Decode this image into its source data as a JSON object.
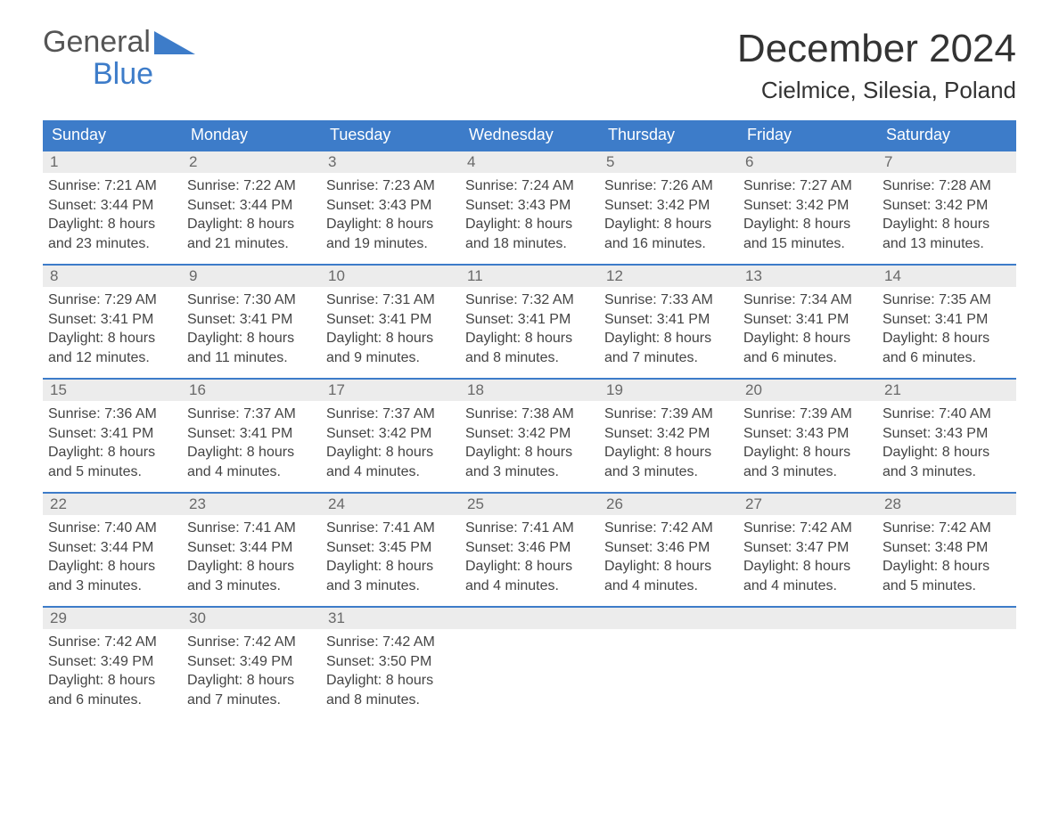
{
  "logo": {
    "word1": "General",
    "word2": "Blue",
    "accent_color": "#3d7cc9"
  },
  "title": "December 2024",
  "location": "Cielmice, Silesia, Poland",
  "colors": {
    "header_bg": "#3d7cc9",
    "header_text": "#ffffff",
    "daynum_bg": "#ececec",
    "daynum_text": "#696969",
    "body_text": "#444444",
    "border_top": "#3d7cc9",
    "page_bg": "#ffffff"
  },
  "weekdays": [
    "Sunday",
    "Monday",
    "Tuesday",
    "Wednesday",
    "Thursday",
    "Friday",
    "Saturday"
  ],
  "days": [
    {
      "n": "1",
      "sunrise": "7:21 AM",
      "sunset": "3:44 PM",
      "daylight": "8 hours and 23 minutes."
    },
    {
      "n": "2",
      "sunrise": "7:22 AM",
      "sunset": "3:44 PM",
      "daylight": "8 hours and 21 minutes."
    },
    {
      "n": "3",
      "sunrise": "7:23 AM",
      "sunset": "3:43 PM",
      "daylight": "8 hours and 19 minutes."
    },
    {
      "n": "4",
      "sunrise": "7:24 AM",
      "sunset": "3:43 PM",
      "daylight": "8 hours and 18 minutes."
    },
    {
      "n": "5",
      "sunrise": "7:26 AM",
      "sunset": "3:42 PM",
      "daylight": "8 hours and 16 minutes."
    },
    {
      "n": "6",
      "sunrise": "7:27 AM",
      "sunset": "3:42 PM",
      "daylight": "8 hours and 15 minutes."
    },
    {
      "n": "7",
      "sunrise": "7:28 AM",
      "sunset": "3:42 PM",
      "daylight": "8 hours and 13 minutes."
    },
    {
      "n": "8",
      "sunrise": "7:29 AM",
      "sunset": "3:41 PM",
      "daylight": "8 hours and 12 minutes."
    },
    {
      "n": "9",
      "sunrise": "7:30 AM",
      "sunset": "3:41 PM",
      "daylight": "8 hours and 11 minutes."
    },
    {
      "n": "10",
      "sunrise": "7:31 AM",
      "sunset": "3:41 PM",
      "daylight": "8 hours and 9 minutes."
    },
    {
      "n": "11",
      "sunrise": "7:32 AM",
      "sunset": "3:41 PM",
      "daylight": "8 hours and 8 minutes."
    },
    {
      "n": "12",
      "sunrise": "7:33 AM",
      "sunset": "3:41 PM",
      "daylight": "8 hours and 7 minutes."
    },
    {
      "n": "13",
      "sunrise": "7:34 AM",
      "sunset": "3:41 PM",
      "daylight": "8 hours and 6 minutes."
    },
    {
      "n": "14",
      "sunrise": "7:35 AM",
      "sunset": "3:41 PM",
      "daylight": "8 hours and 6 minutes."
    },
    {
      "n": "15",
      "sunrise": "7:36 AM",
      "sunset": "3:41 PM",
      "daylight": "8 hours and 5 minutes."
    },
    {
      "n": "16",
      "sunrise": "7:37 AM",
      "sunset": "3:41 PM",
      "daylight": "8 hours and 4 minutes."
    },
    {
      "n": "17",
      "sunrise": "7:37 AM",
      "sunset": "3:42 PM",
      "daylight": "8 hours and 4 minutes."
    },
    {
      "n": "18",
      "sunrise": "7:38 AM",
      "sunset": "3:42 PM",
      "daylight": "8 hours and 3 minutes."
    },
    {
      "n": "19",
      "sunrise": "7:39 AM",
      "sunset": "3:42 PM",
      "daylight": "8 hours and 3 minutes."
    },
    {
      "n": "20",
      "sunrise": "7:39 AM",
      "sunset": "3:43 PM",
      "daylight": "8 hours and 3 minutes."
    },
    {
      "n": "21",
      "sunrise": "7:40 AM",
      "sunset": "3:43 PM",
      "daylight": "8 hours and 3 minutes."
    },
    {
      "n": "22",
      "sunrise": "7:40 AM",
      "sunset": "3:44 PM",
      "daylight": "8 hours and 3 minutes."
    },
    {
      "n": "23",
      "sunrise": "7:41 AM",
      "sunset": "3:44 PM",
      "daylight": "8 hours and 3 minutes."
    },
    {
      "n": "24",
      "sunrise": "7:41 AM",
      "sunset": "3:45 PM",
      "daylight": "8 hours and 3 minutes."
    },
    {
      "n": "25",
      "sunrise": "7:41 AM",
      "sunset": "3:46 PM",
      "daylight": "8 hours and 4 minutes."
    },
    {
      "n": "26",
      "sunrise": "7:42 AM",
      "sunset": "3:46 PM",
      "daylight": "8 hours and 4 minutes."
    },
    {
      "n": "27",
      "sunrise": "7:42 AM",
      "sunset": "3:47 PM",
      "daylight": "8 hours and 4 minutes."
    },
    {
      "n": "28",
      "sunrise": "7:42 AM",
      "sunset": "3:48 PM",
      "daylight": "8 hours and 5 minutes."
    },
    {
      "n": "29",
      "sunrise": "7:42 AM",
      "sunset": "3:49 PM",
      "daylight": "8 hours and 6 minutes."
    },
    {
      "n": "30",
      "sunrise": "7:42 AM",
      "sunset": "3:49 PM",
      "daylight": "8 hours and 7 minutes."
    },
    {
      "n": "31",
      "sunrise": "7:42 AM",
      "sunset": "3:50 PM",
      "daylight": "8 hours and 8 minutes."
    }
  ],
  "labels": {
    "sunrise": "Sunrise: ",
    "sunset": "Sunset: ",
    "daylight": "Daylight: "
  },
  "layout": {
    "start_weekday_index": 0,
    "weeks": 5,
    "cols": 7
  }
}
